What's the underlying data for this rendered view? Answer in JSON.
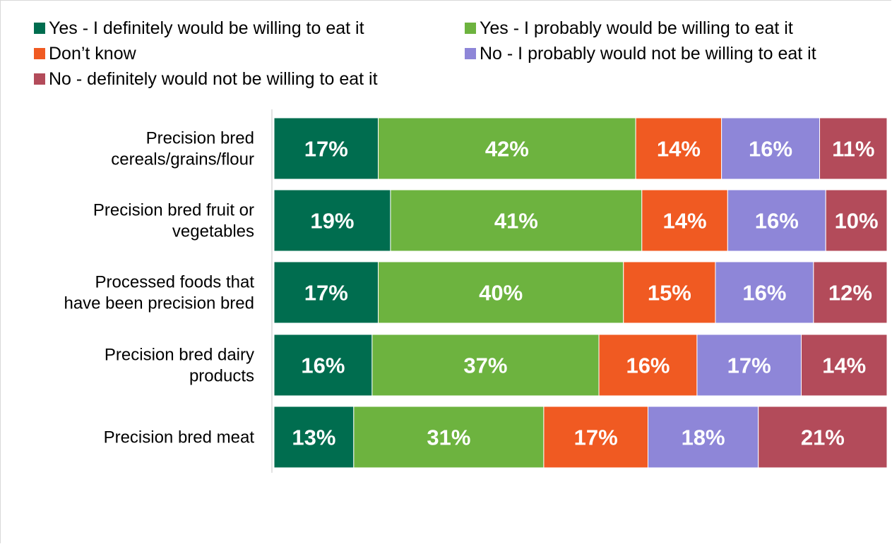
{
  "chart_data": {
    "type": "bar",
    "orientation": "horizontal",
    "stacked": true,
    "percent_stacked": true,
    "title": "",
    "xlabel": "",
    "ylabel": "",
    "xlim": [
      0,
      100
    ],
    "grid": false,
    "legend_position": "top",
    "categories": [
      [
        "Precision bred",
        "cereals/grains/flour"
      ],
      [
        "Precision bred fruit or",
        "vegetables"
      ],
      [
        "Processed foods that",
        "have been precision bred"
      ],
      [
        "Precision bred dairy",
        "products"
      ],
      [
        "Precision bred meat"
      ]
    ],
    "series": [
      {
        "name": "Yes - I definitely would be willing to eat it",
        "color": "#006d4f",
        "values": [
          17,
          19,
          17,
          16,
          13
        ],
        "labels": [
          "17%",
          "19%",
          "17%",
          "16%",
          "13%"
        ]
      },
      {
        "name": "Yes - I probably would be willing to eat it",
        "color": "#6db33f",
        "values": [
          42,
          41,
          40,
          37,
          31
        ],
        "labels": [
          "42%",
          "41%",
          "40%",
          "37%",
          "31%"
        ]
      },
      {
        "name": "Don’t know",
        "color": "#f05a22",
        "values": [
          14,
          14,
          15,
          16,
          17
        ],
        "labels": [
          "14%",
          "14%",
          "15%",
          "16%",
          "17%"
        ]
      },
      {
        "name": "No - I probably would not be willing to eat it",
        "color": "#8e86d8",
        "values": [
          16,
          16,
          16,
          17,
          18
        ],
        "labels": [
          "16%",
          "16%",
          "16%",
          "17%",
          "18%"
        ]
      },
      {
        "name": "No - definitely would not be willing to eat it",
        "color": "#b34b5a",
        "values": [
          11,
          10,
          12,
          14,
          21
        ],
        "labels": [
          "11%",
          "10%",
          "12%",
          "14%",
          "21%"
        ]
      }
    ]
  }
}
